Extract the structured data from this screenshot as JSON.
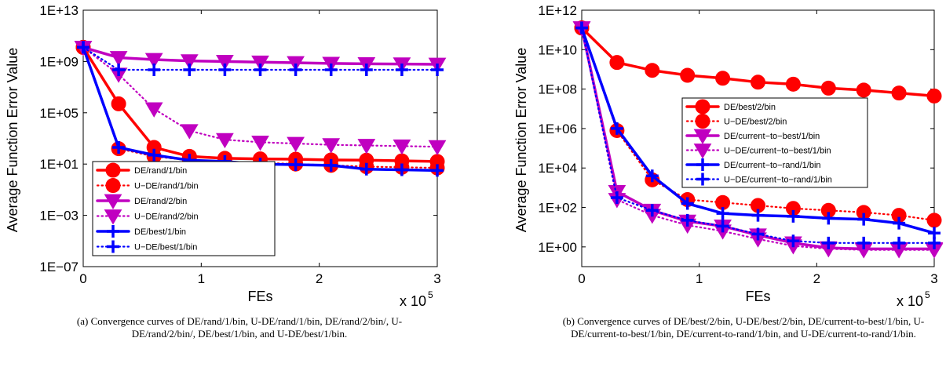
{
  "chart_data": [
    {
      "type": "line",
      "title": "",
      "xlabel": "FEs",
      "ylabel": "Average Function Error Value",
      "x_exponent_label": "x 10",
      "x_exponent_power": "5",
      "x_ticks": [
        "0",
        "1",
        "2",
        "3"
      ],
      "xlim": [
        0,
        3
      ],
      "y_scale": "log",
      "ylim_log10": [
        -7,
        13
      ],
      "y_ticks": [
        {
          "label": "1E−07",
          "log10": -7
        },
        {
          "label": "1E−03",
          "log10": -3
        },
        {
          "label": "1E+01",
          "log10": 1
        },
        {
          "label": "1E+05",
          "log10": 5
        },
        {
          "label": "1E+09",
          "log10": 9
        },
        {
          "label": "1E+13",
          "log10": 13
        }
      ],
      "legend_location": "bottom-left",
      "x": [
        0,
        0.3,
        0.6,
        0.9,
        1.2,
        1.5,
        1.8,
        2.1,
        2.4,
        2.7,
        3.0
      ],
      "series": [
        {
          "name": "DE/rand/1/bin",
          "color": "#ff0000",
          "line": "solid",
          "marker": "circle",
          "log10_values": [
            10.1,
            5.7,
            2.3,
            1.6,
            1.45,
            1.4,
            1.38,
            1.32,
            1.3,
            1.25,
            1.2
          ]
        },
        {
          "name": "U−DE/rand/1/bin",
          "color": "#ff0000",
          "line": "dotted",
          "marker": "circle",
          "log10_values": [
            10.1,
            2.2,
            1.6,
            1.3,
            1.2,
            1.1,
            1.0,
            0.9,
            0.8,
            0.75,
            0.7
          ]
        },
        {
          "name": "DE/rand/2/bin",
          "color": "#c000c0",
          "line": "solid",
          "marker": "triangle-down",
          "log10_values": [
            10.1,
            9.3,
            9.15,
            9.05,
            9.0,
            8.95,
            8.9,
            8.85,
            8.82,
            8.8,
            8.78
          ]
        },
        {
          "name": "U−DE/rand/2/bin",
          "color": "#c000c0",
          "line": "dotted",
          "marker": "triangle-down",
          "log10_values": [
            10.1,
            8.0,
            5.3,
            3.6,
            2.9,
            2.7,
            2.6,
            2.5,
            2.45,
            2.4,
            2.35
          ]
        },
        {
          "name": "DE/best/1/bin",
          "color": "#0000ff",
          "line": "solid",
          "marker": "plus",
          "log10_values": [
            10.1,
            2.3,
            1.7,
            1.3,
            1.2,
            1.0,
            0.95,
            0.9,
            0.6,
            0.55,
            0.5
          ]
        },
        {
          "name": "U−DE/best/1/bin",
          "color": "#0000ff",
          "line": "dotted",
          "marker": "plus",
          "log10_values": [
            10.1,
            8.35,
            8.35,
            8.35,
            8.35,
            8.35,
            8.35,
            8.35,
            8.35,
            8.35,
            8.35
          ]
        }
      ],
      "caption": "(a) Convergence curves of DE/rand/1/bin, U-DE/rand/1/bin, DE/rand/2/bin/, U-DE/rand/2/bin/, DE/best/1/bin, and U-DE/best/1/bin."
    },
    {
      "type": "line",
      "title": "",
      "xlabel": "FEs",
      "ylabel": "Average Function Error Value",
      "x_exponent_label": "x 10",
      "x_exponent_power": "5",
      "x_ticks": [
        "0",
        "1",
        "2",
        "3"
      ],
      "xlim": [
        0,
        3
      ],
      "y_scale": "log",
      "ylim_log10": [
        -1,
        12
      ],
      "y_ticks": [
        {
          "label": "1E+00",
          "log10": 0
        },
        {
          "label": "1E+02",
          "log10": 2
        },
        {
          "label": "1E+04",
          "log10": 4
        },
        {
          "label": "1E+06",
          "log10": 6
        },
        {
          "label": "1E+08",
          "log10": 8
        },
        {
          "label": "1E+10",
          "log10": 10
        },
        {
          "label": "1E+12",
          "log10": 12
        }
      ],
      "legend_location": "middle-right",
      "x": [
        0,
        0.3,
        0.6,
        0.9,
        1.2,
        1.5,
        1.8,
        2.1,
        2.4,
        2.7,
        3.0
      ],
      "series": [
        {
          "name": "DE/best/2/bin",
          "color": "#ff0000",
          "line": "solid",
          "marker": "circle",
          "log10_values": [
            11.1,
            9.35,
            8.95,
            8.7,
            8.55,
            8.35,
            8.25,
            8.05,
            7.95,
            7.8,
            7.65
          ]
        },
        {
          "name": "U−DE/best/2/bin",
          "color": "#ff0000",
          "line": "dotted",
          "marker": "circle",
          "log10_values": [
            11.1,
            5.9,
            3.4,
            2.4,
            2.25,
            2.1,
            1.95,
            1.85,
            1.75,
            1.6,
            1.35
          ]
        },
        {
          "name": "DE/current−to−best/1/bin",
          "color": "#c000c0",
          "line": "solid",
          "marker": "triangle-down",
          "log10_values": [
            11.1,
            2.8,
            1.85,
            1.3,
            1.05,
            0.6,
            0.2,
            -0.05,
            -0.1,
            -0.1,
            -0.1
          ]
        },
        {
          "name": "U−DE/current−to−best/1/bin",
          "color": "#c000c0",
          "line": "dotted",
          "marker": "triangle-down",
          "log10_values": [
            11.1,
            2.4,
            1.6,
            1.1,
            0.8,
            0.4,
            0.05,
            -0.1,
            -0.15,
            -0.15,
            -0.15
          ]
        },
        {
          "name": "DE/current−to−rand/1/bin",
          "color": "#0000ff",
          "line": "solid",
          "marker": "plus",
          "log10_values": [
            11.1,
            6.0,
            3.6,
            2.2,
            1.7,
            1.6,
            1.55,
            1.45,
            1.4,
            1.2,
            0.7
          ]
        },
        {
          "name": "U−DE/current−to−rand/1/bin",
          "color": "#0000ff",
          "line": "dotted",
          "marker": "plus",
          "log10_values": [
            11.1,
            2.5,
            1.85,
            1.35,
            1.05,
            0.65,
            0.3,
            0.2,
            0.2,
            0.2,
            0.2
          ]
        }
      ],
      "caption": "(b) Convergence curves of DE/best/2/bin, U-DE/best/2/bin, DE/current-to-best/1/bin, U-DE/current-to-best/1/bin, DE/current-to-rand/1/bin, and U-DE/current-to-rand/1/bin."
    }
  ]
}
